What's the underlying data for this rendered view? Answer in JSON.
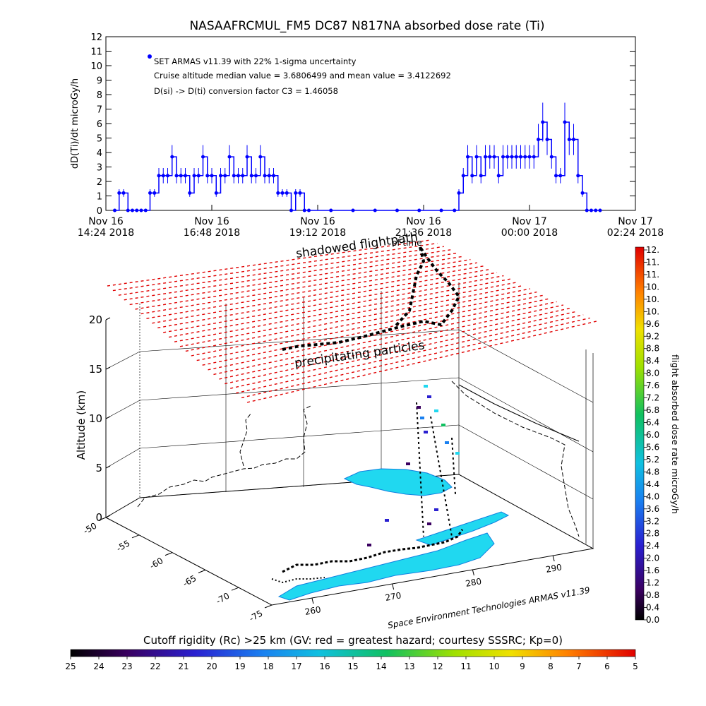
{
  "chart_data": [
    {
      "type": "line",
      "title": "NASAAFRCMUL_FM5 DC87 N817NA absorbed dose rate (Ti)",
      "ylabel": "dD(Ti)/dt microGy/h",
      "ylim": [
        0,
        12
      ],
      "yticks": [
        0,
        1,
        2,
        3,
        4,
        5,
        6,
        7,
        8,
        9,
        10,
        11,
        12
      ],
      "x_unit": "hours",
      "xlim": [
        14.4,
        26.4
      ],
      "xticks": [
        {
          "value": 14.4,
          "line1": "Nov 16",
          "line2": "14:24 2018"
        },
        {
          "value": 16.8,
          "line1": "Nov 16",
          "line2": "16:48 2018"
        },
        {
          "value": 19.2,
          "line1": "Nov 16",
          "line2": "19:12 2018"
        },
        {
          "value": 21.6,
          "line1": "Nov 16",
          "line2": "21:36 2018"
        },
        {
          "value": 24.0,
          "line1": "Nov 17",
          "line2": "00:00 2018"
        },
        {
          "value": 26.4,
          "line1": "Nov 17",
          "line2": "02:24 2018"
        }
      ],
      "legend": "SET ARMAS v11.39 with 22% 1-sigma uncertainty",
      "annotations": [
        "Cruise altitude median value = 3.6806499 and mean value = 3.4122692",
        "D(si) -> D(ti) conversion factor C3 = 1.46058"
      ],
      "series": [
        {
          "color": "#0000ff",
          "x": [
            14.6,
            14.7,
            14.8,
            14.9,
            15.0,
            15.1,
            15.2,
            15.3,
            15.4,
            15.5,
            15.6,
            15.7,
            15.8,
            15.9,
            16.0,
            16.1,
            16.2,
            16.3,
            16.4,
            16.5,
            16.6,
            16.7,
            16.8,
            16.9,
            17.0,
            17.1,
            17.2,
            17.3,
            17.4,
            17.5,
            17.6,
            17.7,
            17.8,
            17.9,
            18.0,
            18.1,
            18.2,
            18.3,
            18.4,
            18.5,
            18.6,
            18.7,
            18.8,
            18.9,
            19.0,
            19.5,
            20.0,
            20.5,
            21.0,
            21.5,
            22.0,
            22.3,
            22.4,
            22.5,
            22.6,
            22.7,
            22.8,
            22.9,
            23.0,
            23.1,
            23.2,
            23.3,
            23.4,
            23.5,
            23.6,
            23.7,
            23.8,
            23.9,
            24.0,
            24.1,
            24.2,
            24.3,
            24.4,
            24.5,
            24.6,
            24.7,
            24.8,
            24.9,
            25.0,
            25.1,
            25.2,
            25.3,
            25.4,
            25.5,
            25.6
          ],
          "values": [
            0,
            1.2,
            1.2,
            0,
            0,
            0,
            0,
            0,
            1.2,
            1.2,
            2.4,
            2.4,
            2.4,
            3.7,
            2.4,
            2.4,
            2.4,
            1.2,
            2.4,
            2.4,
            3.7,
            2.4,
            2.4,
            1.2,
            2.4,
            2.4,
            3.7,
            2.4,
            2.4,
            2.4,
            3.7,
            2.4,
            2.4,
            3.7,
            2.4,
            2.4,
            2.4,
            1.2,
            1.2,
            1.2,
            0,
            1.2,
            1.2,
            0,
            0,
            0,
            0,
            0,
            0,
            0,
            0,
            0,
            1.2,
            2.4,
            3.7,
            2.4,
            3.7,
            2.4,
            3.7,
            3.7,
            3.7,
            2.4,
            3.7,
            3.7,
            3.7,
            3.7,
            3.7,
            3.7,
            3.7,
            3.7,
            4.9,
            6.1,
            4.9,
            3.7,
            2.4,
            2.4,
            6.1,
            4.9,
            4.9,
            2.4,
            1.2,
            0,
            0,
            0,
            0
          ]
        }
      ]
    },
    {
      "type": "scatter",
      "ylabel": "Altitude (km)",
      "zlim": [
        0,
        20
      ],
      "zticks": [
        0,
        5,
        10,
        15,
        20
      ],
      "lat_ticks": [
        "-50",
        "-55",
        "-60",
        "-65",
        "-70",
        "-75"
      ],
      "lon_ticks": [
        "260",
        "270",
        "280",
        "290"
      ],
      "labels": [
        "shadowed flightpath",
        "of time",
        "precipitating particles"
      ],
      "credit": "Space Environment Technologies ARMAS v11.39",
      "colorbar_right": {
        "label": "flight absorbed dose rate microGy/h",
        "ticks": [
          "12.",
          "11.",
          "11.",
          "10.",
          "10.",
          "10.",
          "9.6",
          "9.2",
          "8.8",
          "8.4",
          "8.0",
          "7.6",
          "7.2",
          "6.8",
          "6.4",
          "6.0",
          "5.6",
          "5.2",
          "4.8",
          "4.4",
          "4.0",
          "3.6",
          "3.2",
          "2.8",
          "2.4",
          "2.0",
          "1.6",
          "1.2",
          "0.8",
          "0.4",
          "0.0"
        ]
      },
      "colorbar_bottom": {
        "label": "Cutoff rigidity (Rc) >25 km (GV: red = greatest hazard; courtesy SSSRC; Kp=0)",
        "ticks": [
          "25",
          "24",
          "23",
          "22",
          "21",
          "20",
          "19",
          "18",
          "17",
          "16",
          "15",
          "14",
          "13",
          "12",
          "11",
          "10",
          "9",
          "8",
          "7",
          "6",
          "5"
        ]
      }
    }
  ]
}
